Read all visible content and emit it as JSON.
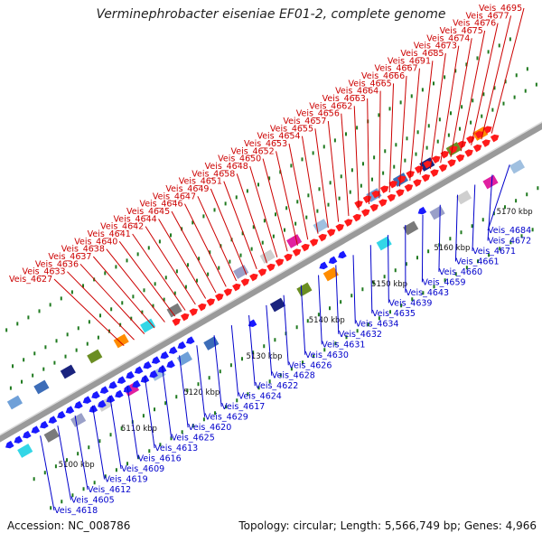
{
  "title": "Verminephrobacter eiseniae EF01-2, complete genome",
  "accession": "Accession: NC_008786",
  "summary": "Topology: circular; Length: 5,566,749 bp; Genes: 4,966",
  "colors": {
    "backbone": "#9a9a9a",
    "forward_gene": "#ff1a1a",
    "reverse_gene": "#1a1aff",
    "forward_label": "#cc0000",
    "reverse_label": "#0000cc",
    "tick_dot": "#1f7a1f"
  },
  "kbp_ticks": [
    "5100 kbp",
    "5110 kbp",
    "5120 kbp",
    "5130 kbp",
    "5140 kbp",
    "5150 kbp",
    "5160 kbp",
    "5170 kbp"
  ],
  "forward_labels": [
    "Veis_4695",
    "Veis_4677",
    "Veis_4676",
    "Veis_4675",
    "Veis_4674",
    "Veis_4673",
    "Veis_4685",
    "Veis_4691",
    "Veis_4667",
    "Veis_4666",
    "Veis_4665",
    "Veis_4664",
    "Veis_4663",
    "Veis_4662",
    "Veis_4656",
    "Veis_4657",
    "Veis_4655",
    "Veis_4654",
    "Veis_4653",
    "Veis_4652",
    "Veis_4650",
    "Veis_4648",
    "Veis_4658",
    "Veis_4651",
    "Veis_4649",
    "Veis_4647",
    "Veis_4646",
    "Veis_4645",
    "Veis_4644",
    "Veis_4642",
    "Veis_4641",
    "Veis_4640",
    "Veis_4638",
    "Veis_4637",
    "Veis_4636",
    "Veis_4633",
    "Veis_4627"
  ],
  "reverse_labels": [
    "Veis_4684",
    "Veis_4672",
    "Veis_4671",
    "Veis_4661",
    "Veis_4660",
    "Veis_4659",
    "Veis_4643",
    "Veis_4639",
    "Veis_4635",
    "Veis_4634",
    "Veis_4632",
    "Veis_4631",
    "Veis_4630",
    "Veis_4626",
    "Veis_4628",
    "Veis_4622",
    "Veis_4624",
    "Veis_4617",
    "Veis_4629",
    "Veis_4620",
    "Veis_4625",
    "Veis_4613",
    "Veis_4616",
    "Veis_4609",
    "Veis_4619",
    "Veis_4612",
    "Veis_4605",
    "Veis_4618"
  ]
}
